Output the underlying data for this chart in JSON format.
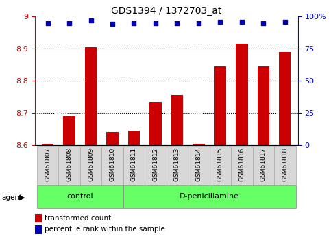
{
  "title": "GDS1394 / 1372703_at",
  "samples": [
    "GSM61807",
    "GSM61808",
    "GSM61809",
    "GSM61810",
    "GSM61811",
    "GSM61812",
    "GSM61813",
    "GSM61814",
    "GSM61815",
    "GSM61816",
    "GSM61817",
    "GSM61818"
  ],
  "bar_values": [
    8.605,
    8.69,
    8.905,
    8.64,
    8.645,
    8.735,
    8.755,
    8.605,
    8.845,
    8.915,
    8.845,
    8.89
  ],
  "percentile_values": [
    95,
    95,
    97,
    94,
    95,
    95,
    95,
    95,
    96,
    96,
    95,
    96
  ],
  "ylim_left": [
    8.6,
    9.0
  ],
  "ylim_right": [
    0,
    100
  ],
  "yticks_left": [
    8.6,
    8.7,
    8.8,
    8.9,
    9.0
  ],
  "ytick_labels_left": [
    "8.6",
    "8.7",
    "8.8",
    "8.9",
    "9"
  ],
  "yticks_right": [
    0,
    25,
    50,
    75,
    100
  ],
  "ytick_labels_right": [
    "0",
    "25",
    "50",
    "75",
    "100%"
  ],
  "bar_color": "#cc0000",
  "dot_color": "#0000bb",
  "bar_baseline": 8.6,
  "groups": [
    {
      "label": "control",
      "start": 0,
      "end": 3
    },
    {
      "label": "D-penicillamine",
      "start": 4,
      "end": 11
    }
  ],
  "group_color": "#66ff66",
  "agent_label": "agent",
  "legend_bar_label": "transformed count",
  "legend_dot_label": "percentile rank within the sample",
  "grid_color": "#000000",
  "tick_color_left": "#cc0000",
  "tick_color_right": "#0000bb",
  "label_box_color": "#d8d8d8",
  "label_box_edge": "#aaaaaa"
}
